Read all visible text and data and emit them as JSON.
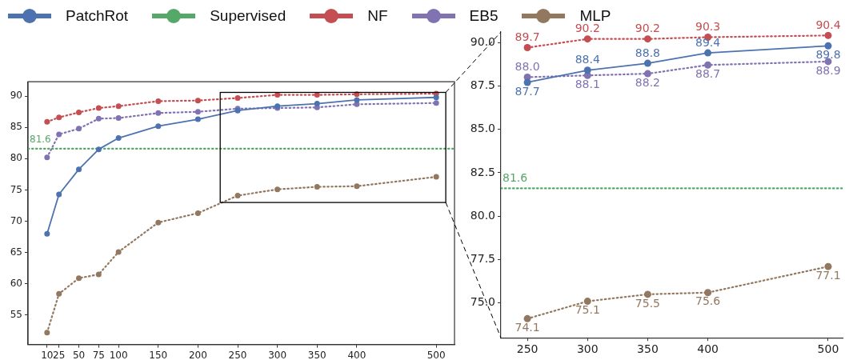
{
  "chart_data": [
    {
      "type": "line",
      "legend": "top",
      "marker": "circle",
      "grid": false,
      "xlim": [
        -14,
        523
      ],
      "ylim": [
        50.3,
        92.3
      ],
      "xticks": [
        10,
        25,
        50,
        75,
        100,
        150,
        200,
        250,
        300,
        350,
        400,
        500
      ],
      "yticks": [
        55,
        60,
        65,
        70,
        75,
        80,
        85,
        90
      ],
      "x": [
        10,
        25,
        50,
        75,
        100,
        150,
        200,
        250,
        300,
        350,
        400,
        500
      ],
      "series": [
        {
          "name": "PatchRot",
          "color": "#4c72b0",
          "line_style": "solid",
          "values": [
            68.0,
            74.3,
            78.3,
            81.5,
            83.3,
            85.2,
            86.3,
            87.7,
            88.4,
            88.8,
            89.4,
            89.8
          ]
        },
        {
          "name": "Supervised",
          "color": "#55a868",
          "line_style": "dotted",
          "marker": "none",
          "x": [
            -14,
            523
          ],
          "values": [
            81.6,
            81.6
          ],
          "value_labels": [
            "81.6",
            null
          ]
        },
        {
          "name": "NF",
          "color": "#c44e52",
          "line_style": "dotted",
          "values": [
            85.9,
            86.6,
            87.4,
            88.1,
            88.4,
            89.2,
            89.3,
            89.7,
            90.2,
            90.2,
            90.3,
            90.4
          ]
        },
        {
          "name": "EB5",
          "color": "#8172b2",
          "line_style": "dotted",
          "values": [
            80.2,
            83.9,
            84.8,
            86.4,
            86.5,
            87.3,
            87.5,
            88.0,
            88.1,
            88.2,
            88.7,
            88.9
          ]
        },
        {
          "name": "MLP",
          "color": "#937860",
          "line_style": "dotted",
          "values": [
            52.2,
            58.4,
            60.9,
            61.5,
            65.1,
            69.8,
            71.3,
            74.1,
            75.1,
            75.5,
            75.6,
            77.1
          ]
        }
      ]
    },
    {
      "type": "line",
      "legend": false,
      "marker": "circle",
      "grid": false,
      "xlim": [
        228,
        512
      ],
      "ylim": [
        73.0,
        90.6
      ],
      "xticks": [
        250,
        300,
        350,
        400,
        500
      ],
      "yticks": [
        {
          "value": 75,
          "label": "75.0"
        },
        {
          "value": 77.5,
          "label": "77.5"
        },
        {
          "value": 80,
          "label": "80.0"
        },
        {
          "value": 82.5,
          "label": "82.5"
        },
        {
          "value": 85,
          "label": "85.0"
        },
        {
          "value": 87.5,
          "label": "87.5"
        },
        {
          "value": 90,
          "label": "90.0"
        }
      ],
      "x": [
        250,
        300,
        350,
        400,
        500
      ],
      "series": [
        {
          "color": "#4c72b0",
          "line_style": "solid",
          "values": [
            87.7,
            88.4,
            88.8,
            89.4,
            89.8
          ],
          "value_labels": [
            "87.7",
            "88.4",
            "88.8",
            "89.4",
            "89.8"
          ]
        },
        {
          "color": "#55a868",
          "line_style": "dotted",
          "marker": "none",
          "x": [
            228,
            512
          ],
          "values": [
            81.6,
            81.6
          ],
          "value_labels": [
            "81.6",
            null
          ]
        },
        {
          "color": "#c44e52",
          "line_style": "dotted",
          "values": [
            89.7,
            90.2,
            90.2,
            90.3,
            90.4
          ],
          "value_labels": [
            "89.7",
            "90.2",
            "90.2",
            "90.3",
            "90.4"
          ]
        },
        {
          "color": "#8172b2",
          "line_style": "dotted",
          "values": [
            88.0,
            88.1,
            88.2,
            88.7,
            88.9
          ],
          "value_labels": [
            "88.0",
            "88.1",
            "88.2",
            "88.7",
            "88.9"
          ]
        },
        {
          "color": "#937860",
          "line_style": "dotted",
          "values": [
            74.1,
            75.1,
            75.5,
            75.6,
            77.1
          ],
          "value_labels": [
            "74.1",
            "75.1",
            "75.5",
            "75.6",
            "77.1"
          ]
        }
      ]
    }
  ]
}
